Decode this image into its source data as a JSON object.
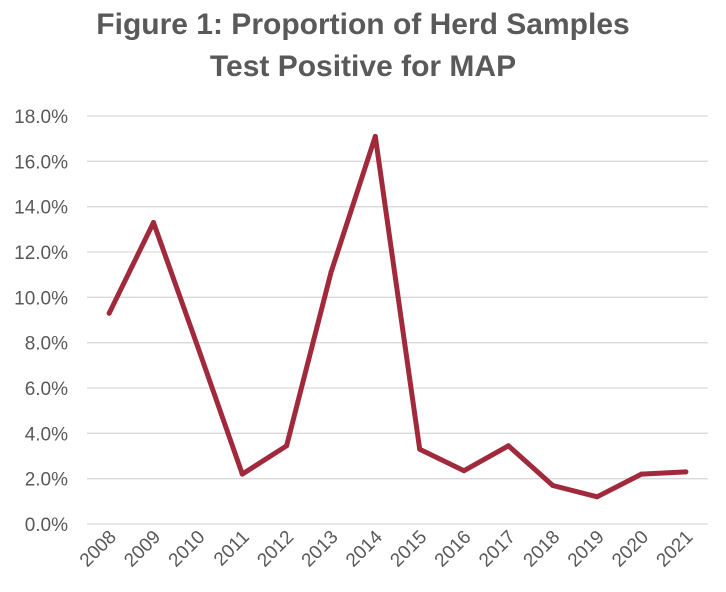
{
  "chart_data": {
    "type": "line",
    "title_lines": [
      "Figure 1: Proportion of Herd Samples",
      "Test Positive for MAP"
    ],
    "x": [
      "2008",
      "2009",
      "2010",
      "2011",
      "2012",
      "2013",
      "2014",
      "2015",
      "2016",
      "2017",
      "2018",
      "2019",
      "2020",
      "2021"
    ],
    "series": [
      {
        "values": [
          9.3,
          13.3,
          7.8,
          2.2,
          3.45,
          11.1,
          17.1,
          3.3,
          2.35,
          3.45,
          1.7,
          1.2,
          2.2,
          2.3
        ]
      }
    ],
    "y_ticks": [
      "0.0%",
      "2.0%",
      "4.0%",
      "6.0%",
      "8.0%",
      "10.0%",
      "12.0%",
      "14.0%",
      "16.0%",
      "18.0%"
    ],
    "ylim": [
      0,
      18
    ],
    "y_unit": "percent",
    "grid": true,
    "legend": "none",
    "xlabel": "",
    "ylabel": "",
    "colors": {
      "line": "#a02a3c",
      "grid": "#d9d9d9",
      "text": "#595959"
    }
  }
}
